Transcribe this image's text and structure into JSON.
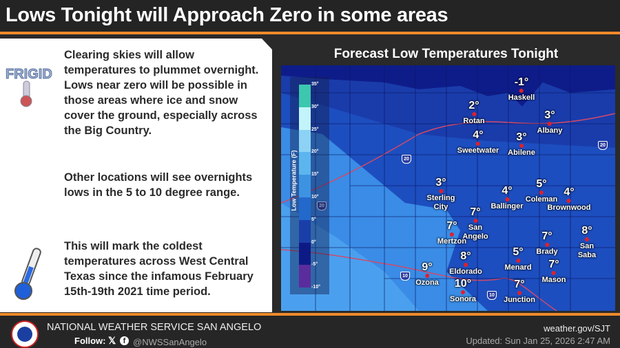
{
  "header": {
    "title": "Lows Tonight will Approach Zero in some areas"
  },
  "left": {
    "paragraphs": [
      "Clearing skies will allow temperatures to plummet overnight. Lows near zero will be possible in those areas where ice and snow cover the ground, especially across the Big Country.",
      "Other locations will see overnights lows in the 5 to 10 degree range.",
      "This will mark the coldest temperatures across West Central Texas since the infamous February 15th-19th 2021 time period."
    ],
    "frigid_logo_text": "FRIGID",
    "icons": [
      "frigid-thermometer-icon",
      "thermometer-icon"
    ]
  },
  "map": {
    "title": "Forecast Low Temperatures Tonight",
    "legend": {
      "title": "Low Temperature (F)",
      "ticks": [
        "35°",
        "30°",
        "25°",
        "20°",
        "15°",
        "10°",
        "5°",
        "0°",
        "-5°",
        "-10°"
      ],
      "colors": [
        "#3cc7ae",
        "#c3f4fb",
        "#8dd2f4",
        "#5db5ee",
        "#3d93e2",
        "#2369cc",
        "#1a3ea8",
        "#0d1a86",
        "#5b2c9c"
      ]
    },
    "highways": [
      "20",
      "20",
      "20",
      "10",
      "10"
    ],
    "cities": [
      {
        "name": "Haskell",
        "temp": "-1°"
      },
      {
        "name": "Rotan",
        "temp": "2°"
      },
      {
        "name": "Albany",
        "temp": "3°"
      },
      {
        "name": "Sweetwater",
        "temp": "4°"
      },
      {
        "name": "Abilene",
        "temp": "3°"
      },
      {
        "name": "Sterling City",
        "temp": "3°"
      },
      {
        "name": "Ballinger",
        "temp": "4°"
      },
      {
        "name": "Coleman",
        "temp": "5°"
      },
      {
        "name": "Brownwood",
        "temp": "4°"
      },
      {
        "name": "San Angelo",
        "temp": "7°"
      },
      {
        "name": "Mertzon",
        "temp": "7°"
      },
      {
        "name": "Brady",
        "temp": "7°"
      },
      {
        "name": "San Saba",
        "temp": "8°"
      },
      {
        "name": "Menard",
        "temp": "5°"
      },
      {
        "name": "Eldorado",
        "temp": "8°"
      },
      {
        "name": "Mason",
        "temp": "7°"
      },
      {
        "name": "Ozona",
        "temp": "9°"
      },
      {
        "name": "Sonora",
        "temp": "10°"
      },
      {
        "name": "Junction",
        "temp": "7°"
      }
    ]
  },
  "footer": {
    "office": "NATIONAL WEATHER SERVICE SAN ANGELO",
    "follow": "Follow:",
    "x_icon": "𝕏",
    "fb_icon": "f",
    "handle": "@NWSSanAngelo",
    "site": "weather.gov/SJT",
    "updated": "Updated: Sun Jan 25, 2026 2:47 AM"
  },
  "colors": {
    "accent": "#f08a2a",
    "header_bg": "#242424"
  }
}
